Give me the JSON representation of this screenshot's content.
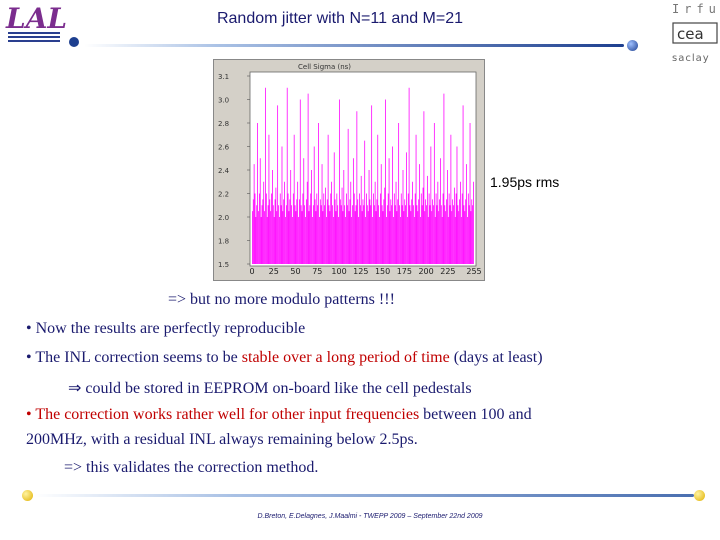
{
  "header": {
    "title": "Random jitter with N=11 and M=21",
    "lal_logo_text": "LAL",
    "irfu_text": "Irfu",
    "cea_text": "cea",
    "saclay_text": "saclay"
  },
  "plot": {
    "window_title": "Cell Sigma (ns)",
    "caption": "1.95ps rms"
  },
  "chart_data": {
    "type": "bar",
    "title": "Cell Sigma (ns)",
    "y_ticks": [
      "3.1",
      "3.0",
      "2.8",
      "2.6",
      "2.4",
      "2.2",
      "2.0",
      "1.8",
      "1.5"
    ],
    "x_ticks": [
      "0",
      "25",
      "50",
      "75",
      "100",
      "125",
      "150",
      "175",
      "200",
      "225",
      "255"
    ],
    "xlim": [
      0,
      255
    ],
    "ylim": [
      1.5,
      3.1
    ],
    "color": "#ff00ff",
    "values": [
      1.95,
      2.05,
      2.35,
      2.1,
      1.9,
      2.0,
      2.7,
      1.95,
      2.1,
      2.4,
      1.9,
      2.0,
      2.05,
      2.2,
      1.95,
      3.0,
      2.1,
      1.9,
      2.0,
      2.6,
      2.05,
      1.95,
      2.1,
      2.3,
      2.0,
      1.9,
      2.05,
      2.15,
      1.95,
      2.85,
      2.0,
      1.9,
      2.1,
      2.0,
      2.5,
      1.95,
      2.05,
      2.2,
      1.9,
      2.0,
      3.0,
      2.1,
      1.95,
      2.05,
      2.3,
      2.0,
      1.9,
      2.1,
      2.6,
      2.0,
      1.95,
      2.05,
      2.2,
      1.9,
      2.05,
      2.9,
      2.0,
      1.95,
      2.1,
      2.4,
      2.0,
      1.9,
      2.05,
      2.2,
      2.95,
      1.95,
      2.0,
      2.1,
      2.3,
      1.9,
      2.0,
      2.5,
      2.05,
      1.95,
      2.1,
      2.0,
      2.7,
      1.9,
      2.05,
      2.0,
      2.35,
      1.95,
      2.1,
      2.0,
      2.15,
      1.9,
      2.05,
      2.6,
      2.0,
      1.95,
      2.1,
      2.2,
      2.0,
      1.9,
      2.45,
      2.05,
      1.95,
      2.1,
      2.0,
      1.9,
      2.9,
      2.05,
      2.0,
      2.15,
      1.95,
      2.3,
      2.0,
      1.9,
      2.1,
      2.0,
      2.65,
      1.95,
      2.05,
      2.2,
      1.9,
      2.0,
      2.4,
      2.1,
      1.95,
      2.0,
      2.8,
      2.05,
      1.9,
      2.1,
      2.0,
      2.25,
      1.95,
      2.05,
      2.0,
      2.55,
      1.9,
      2.1,
      2.0,
      1.95,
      2.3,
      2.05,
      2.0,
      2.85,
      1.9,
      2.1,
      2.0,
      2.2,
      1.95,
      2.05,
      2.6,
      2.0,
      1.9,
      2.1,
      2.35,
      2.0,
      1.95,
      2.05,
      2.15,
      2.9,
      1.9,
      2.0,
      2.1,
      2.4,
      1.95,
      2.05,
      2.0,
      2.5,
      1.9,
      2.1,
      2.0,
      2.2,
      1.95,
      2.05,
      2.7,
      2.0,
      1.9,
      2.1,
      2.0,
      2.3,
      1.95,
      2.05,
      2.0,
      2.45,
      1.9,
      2.1,
      3.0,
      2.0,
      1.95,
      2.05,
      2.2,
      2.0,
      1.9,
      2.1,
      2.6,
      2.0,
      1.95,
      2.05,
      2.35,
      1.9,
      2.1,
      2.0,
      2.15,
      2.8,
      1.95,
      2.05,
      2.0,
      2.25,
      1.9,
      2.1,
      2.0,
      2.5,
      1.95,
      2.05,
      2.0,
      2.7,
      1.9,
      2.1,
      2.0,
      2.2,
      1.95,
      2.05,
      2.4,
      2.0,
      1.9,
      2.1,
      2.95,
      2.0,
      1.95,
      2.05,
      2.3,
      1.9,
      2.1,
      2.0,
      2.6,
      1.95,
      2.05,
      2.0,
      2.15,
      1.9,
      2.1,
      2.5,
      2.0,
      1.95,
      2.05,
      2.2,
      1.9,
      2.1,
      2.85,
      2.0,
      1.95,
      2.05,
      2.35,
      1.9,
      2.1,
      2.0,
      2.7,
      1.95,
      2.05,
      2.0,
      2.2
    ]
  },
  "body": {
    "line1": "=> but no more modulo patterns !!!",
    "line2": "Now the results are perfectly reproducible",
    "line3_a": "The INL correction seems to be ",
    "line3_b": "stable over a long period of time",
    "line3_c": " (days at least)",
    "line4_arrow": "⇒",
    "line4": "could be stored in EEPROM on-board like the cell pedestals",
    "line5_a": "The correction works rather well for other input frequencies",
    "line5_b": " between 100 and",
    "line6": "200MHz, with a residual INL always remaining below 2.5ps.",
    "line7": "=> this validates the correction method."
  },
  "footer": {
    "text": "D.Breton, E.Delagnes, J.Maalmi - TWEPP 2009 – September 22nd 2009"
  }
}
